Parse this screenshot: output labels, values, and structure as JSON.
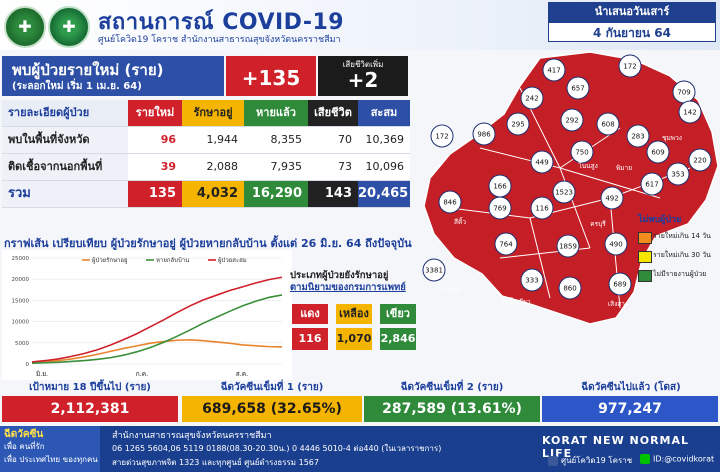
{
  "header": {
    "title": "สถานการณ์ COVID-19",
    "subtitle": "ศูนย์โควิด19 โคราช สำนักงานสาธารณสุขจังหวัดนครราชสีมา",
    "day": "นำเสนอวันเสาร์",
    "date": "4 กันยายน 64"
  },
  "new_cases": {
    "title": "พบผู้ป่วยรายใหม่ (ราย)",
    "subtitle": "(ระลอกใหม่ เริ่ม 1 เม.ย. 64)",
    "value": "+135",
    "death_label": "เสียชีวิตเพิ่ม",
    "death_value": "+2"
  },
  "table": {
    "headers": [
      "รายละเอียดผู้ป่วย",
      "รายใหม่",
      "รักษาอยู่",
      "หายแล้ว",
      "เสียชีวิต",
      "สะสม"
    ],
    "rows": [
      [
        "พบในพื้นที่จังหวัด",
        "96",
        "1,944",
        "8,355",
        "70",
        "10,369"
      ],
      [
        "ติดเชื้อจากนอกพื้นที่",
        "39",
        "2,088",
        "7,935",
        "73",
        "10,096"
      ]
    ],
    "total": [
      "รวม",
      "135",
      "4,032",
      "16,290",
      "143",
      "20,465"
    ]
  },
  "chart_data": {
    "type": "line",
    "title": "กราฟเส้น เปรียบเทียบ ผู้ป่วยรักษาอยู่ ผู้ป่วยหายกลับบ้าน ตั้งแต่ 26 มิ.ย. 64 ถึงปัจจุบัน",
    "ylim": [
      0,
      25000
    ],
    "yticks": [
      "0",
      "5000",
      "10000",
      "15000",
      "20000",
      "25000"
    ],
    "xlabels": [
      "มิ.ย.",
      "ก.ค.",
      "ส.ค."
    ],
    "series": [
      {
        "name": "ผู้ป่วยรักษาอยู่",
        "color": "#e8842c",
        "values": [
          300,
          500,
          800,
          1200,
          1700,
          2300,
          3000,
          3700,
          4300,
          4900,
          5300,
          5600,
          5700,
          5500,
          5200,
          4900,
          4500,
          4300,
          4100,
          4032
        ]
      },
      {
        "name": "หายกลับบ้าน",
        "color": "#3a8f3a",
        "values": [
          200,
          300,
          400,
          600,
          800,
          1100,
          1500,
          2100,
          2900,
          3900,
          5100,
          6500,
          8000,
          9600,
          11000,
          12400,
          13700,
          14800,
          15700,
          16290
        ]
      },
      {
        "name": "ผู้ป่วยสะสม",
        "color": "#d0202a",
        "values": [
          500,
          800,
          1200,
          1800,
          2500,
          3400,
          4500,
          5800,
          7200,
          8800,
          10400,
          12100,
          13700,
          15100,
          16200,
          17300,
          18200,
          19100,
          19900,
          20465
        ]
      }
    ]
  },
  "category": {
    "title": "ประเภทผู้ป่วยยังรักษาอยู่",
    "subtitle": "ตามนิยามของกรมการแพทย์",
    "items": [
      {
        "label": "แดง",
        "value": "116",
        "color": "#d0202a"
      },
      {
        "label": "เหลือง",
        "value": "1,070",
        "color": "#f4b400"
      },
      {
        "label": "เขียว",
        "value": "2,846",
        "color": "#2f8a3a"
      }
    ]
  },
  "map": {
    "districts": [
      "417",
      "172",
      "657",
      "709",
      "242",
      "295",
      "292",
      "608",
      "283",
      "142",
      "172",
      "986",
      "449",
      "750",
      "609",
      "220",
      "353",
      "617",
      "166",
      "1523",
      "492",
      "846",
      "769",
      "116",
      "764",
      "1859",
      "490",
      "3381",
      "333",
      "860",
      "689"
    ],
    "labels": [
      "ครบุรี",
      "ปากช่อง",
      "สีคิ้ว",
      "วังน้ำเขียว",
      "เสิงสาง",
      "โนนสูง",
      "พิมาย",
      "ชุมพวง"
    ],
    "legend_title": "ไม่พบผู้ป่วย",
    "legend": [
      {
        "label": "รายใหม่เกิน 14 วัน",
        "color": "#f28c1f"
      },
      {
        "label": "รายใหม่เกิน 30 วัน",
        "color": "#f7e600"
      },
      {
        "label": "ไม่มีรายงานผู้ป่วย",
        "color": "#2f8a3a"
      }
    ]
  },
  "vaccine": [
    {
      "label": "เป้าหมาย 18 ปีขึ้นไป (ราย)",
      "value": "2,112,381",
      "bg": "#d0202a"
    },
    {
      "label": "ฉีดวัคซีนเข็มที่ 1 (ราย)",
      "value": "689,658 (32.65%)",
      "bg": "#f4b400"
    },
    {
      "label": "ฉีดวัคซีนเข็มที่ 2 (ราย)",
      "value": "287,589 (13.61%)",
      "bg": "#2f8a3a"
    },
    {
      "label": "ฉีดวัคซีนไปแล้ว (โดส)",
      "value": "977,247",
      "bg": "#2d57c9"
    }
  ],
  "footer": {
    "left1": "ฉีดวัคซีน",
    "left2": "เพื่อ คนที่รัก",
    "left3": "เพื่อ ประเทศไทย",
    "left4": "ของทุกคน",
    "line1": "สำนักงานสาธารณสุขจังหวัดนครราชสีมา",
    "line2": "06 1265 5604,06 5119 0188(08.30-20.30น.) 0 4446 5010-4 ต่อ440 (ในเวลาราชการ)",
    "line3": "สายด่วนสุขภาพจิต 1323 และทุกศูนย์ ศูนย์ดำรงธรรม 1567",
    "brand": "KORAT NEW NORMAL LIFE",
    "facebook": "ศูนย์โควิด19 โคราช",
    "lineid": "ID:@covidkorat"
  }
}
